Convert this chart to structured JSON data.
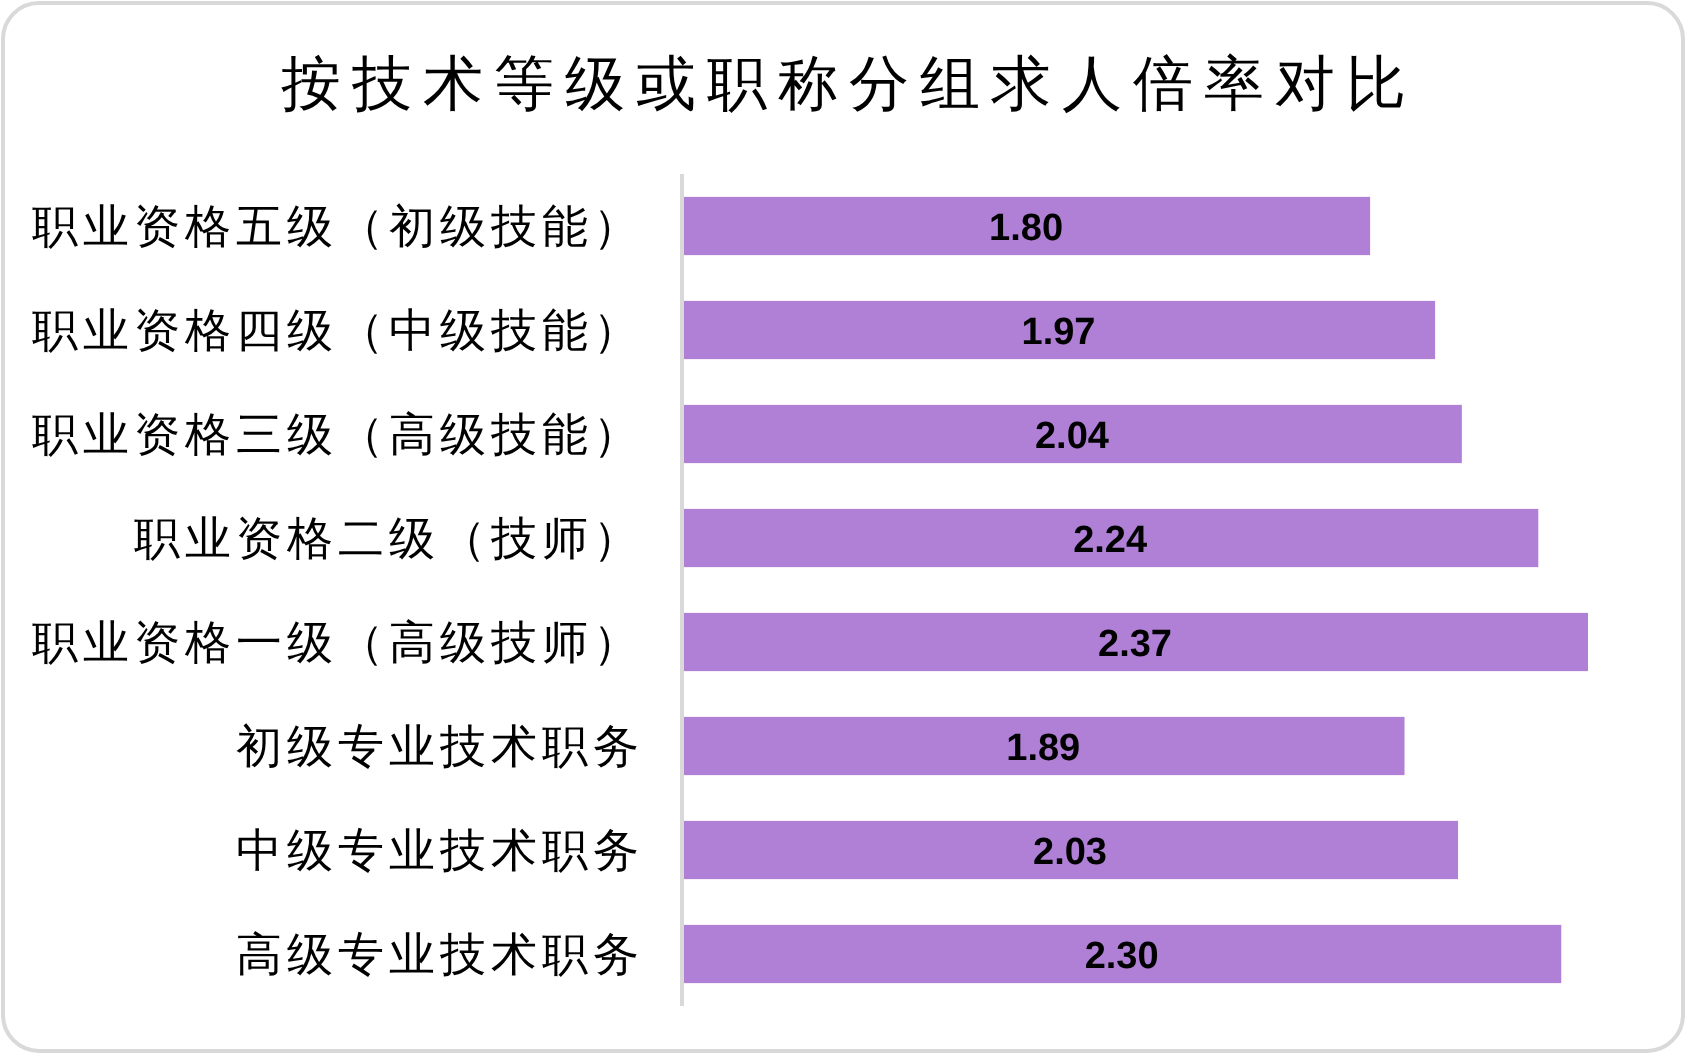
{
  "chart_data": {
    "type": "bar",
    "orientation": "horizontal",
    "title": "按技术等级或职称分组求人倍率对比",
    "categories": [
      "职业资格五级（初级技能）",
      "职业资格四级（中级技能）",
      "职业资格三级（高级技能）",
      "职业资格二级（技师）",
      "职业资格一级（高级技师）",
      "初级专业技术职务",
      "中级专业技术职务",
      "高级专业技术职务"
    ],
    "values": [
      1.8,
      1.97,
      2.04,
      2.24,
      2.37,
      1.89,
      2.03,
      2.3
    ],
    "value_labels": [
      "1.80",
      "1.97",
      "2.04",
      "2.24",
      "2.37",
      "1.89",
      "2.03",
      "2.30"
    ],
    "color": "#b07fd6"
  }
}
